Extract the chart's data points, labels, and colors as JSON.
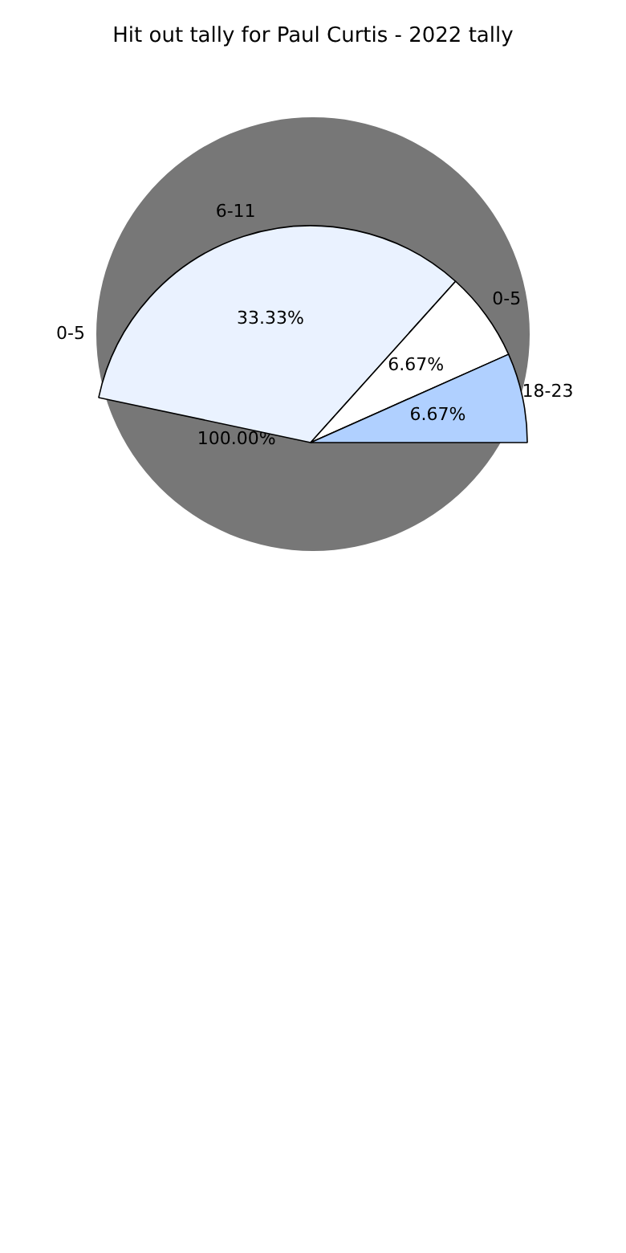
{
  "chart_data": [
    {
      "type": "pie",
      "title": "Hit out tally for Paul Curtis - 2022 tally",
      "categories": [
        "0-5"
      ],
      "values": [
        100
      ],
      "colors": [
        "#777777"
      ],
      "value_labels": [
        "100.00%"
      ],
      "legend": false
    },
    {
      "type": "pie",
      "categories": [
        "6-11",
        "0-5",
        "18-23"
      ],
      "values": [
        33.33,
        6.67,
        6.67
      ],
      "colors": [
        "#eaf2ff",
        "#ffffff",
        "#b0d0ff"
      ],
      "value_labels": [
        "33.33%",
        "6.67%",
        "6.67%"
      ],
      "legend": false
    }
  ]
}
